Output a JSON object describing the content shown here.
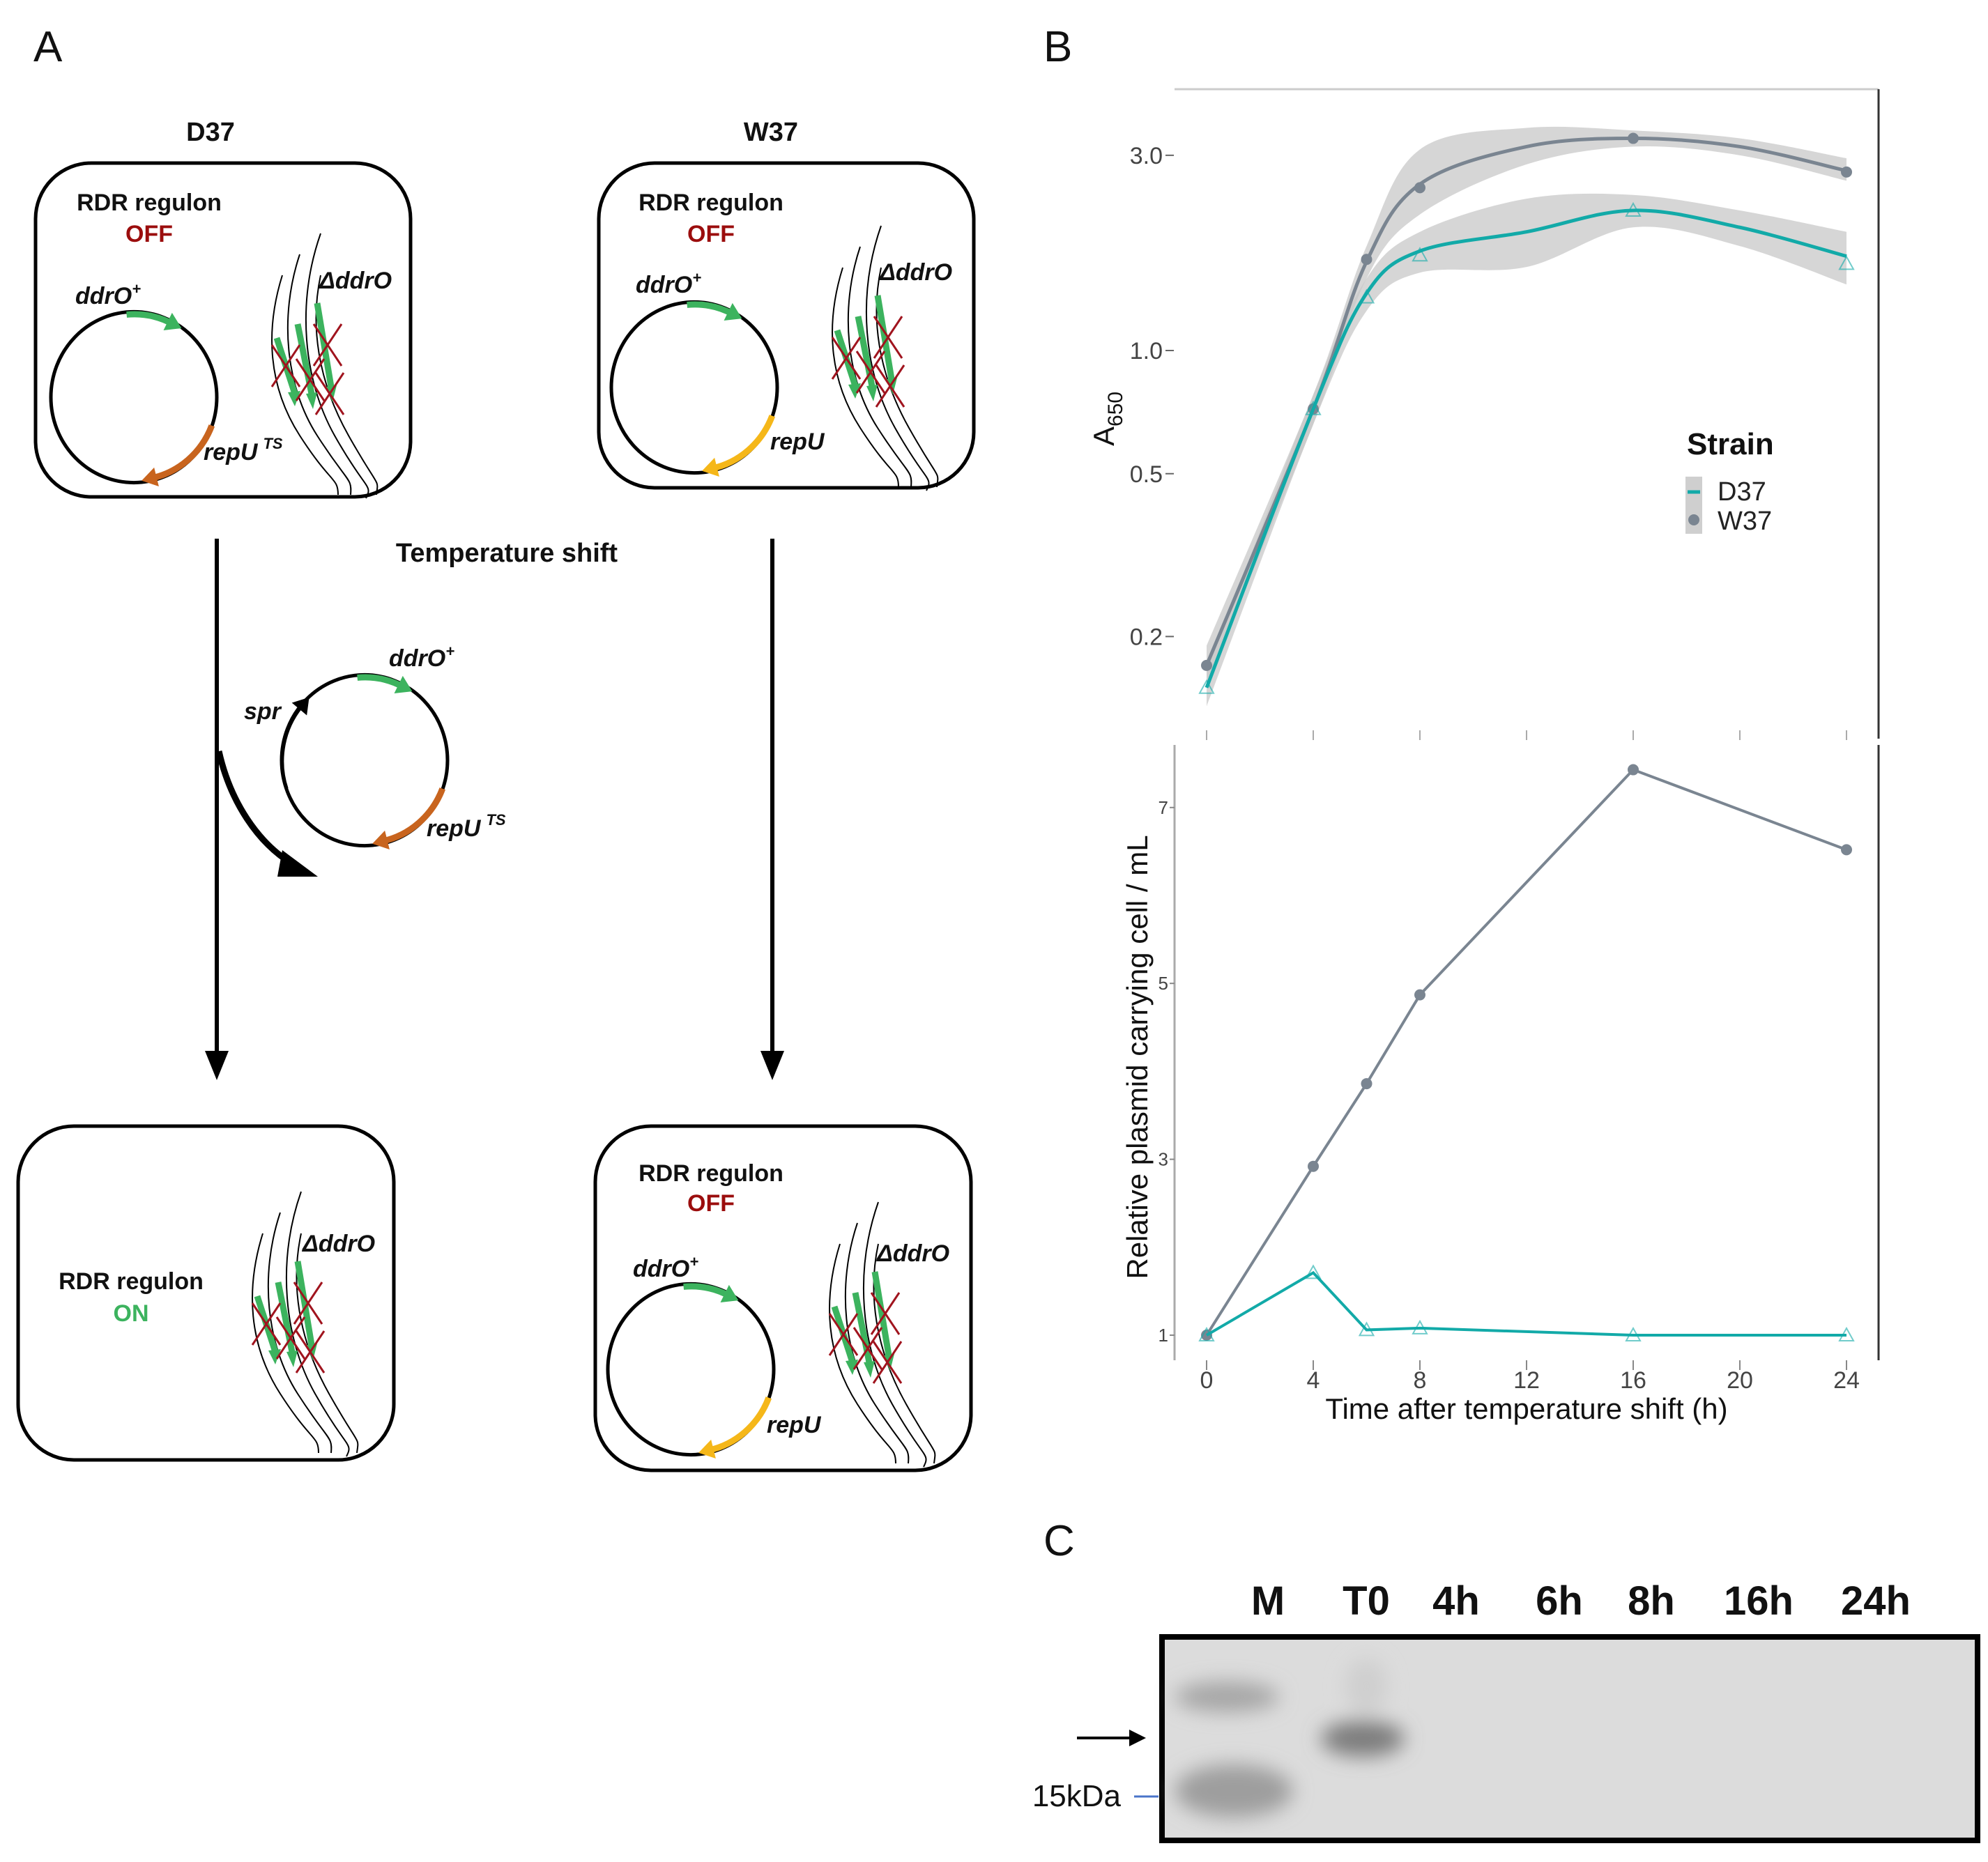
{
  "panels": {
    "a": "A",
    "b": "B",
    "c": "C"
  },
  "diagram": {
    "strain_left": "D37",
    "strain_right": "W37",
    "regulon": "RDR regulon",
    "off": "OFF",
    "on": "ON",
    "chromosome_label": "ΔddrO",
    "gene_ddro": "ddrO",
    "gene_ddro_sup": "+",
    "gene_repu": "repU",
    "gene_repu_ts_sup": "TS",
    "gene_spr": "spr",
    "shift_label": "Temperature shift",
    "colors": {
      "ddro": "#3cb35e",
      "repu_ts": "#c8641e",
      "repu": "#f5b719",
      "off": "#9b0d0d",
      "cross": "#a0141e"
    }
  },
  "chart_data": [
    {
      "type": "line",
      "title": "",
      "ylabel": "A",
      "ylabel_sub": "650",
      "xlabel": "",
      "yscale": "log",
      "ylim": [
        0.13,
        3.6
      ],
      "xlim": [
        0,
        24
      ],
      "yticks": [
        "3.0",
        "1.0",
        "0.5",
        "0.2"
      ],
      "ytick_values": [
        3.0,
        1.0,
        0.5,
        0.2
      ],
      "legend": {
        "title": "Strain",
        "position": "right",
        "entries": [
          "D37",
          "W37"
        ]
      },
      "smooth_x": [
        0,
        4,
        6,
        8,
        12,
        16,
        20,
        24
      ],
      "series": [
        {
          "name": "W37",
          "color": "#7a8591",
          "marker": "circle",
          "x": [
            0,
            4,
            6,
            8,
            16,
            24
          ],
          "values": [
            0.17,
            0.72,
            1.67,
            2.5,
            3.3,
            2.73
          ],
          "smooth": [
            0.17,
            0.72,
            1.65,
            2.55,
            3.15,
            3.3,
            3.15,
            2.75
          ],
          "ci_upper": [
            0.19,
            0.78,
            1.8,
            3.1,
            3.5,
            3.45,
            3.3,
            2.95
          ],
          "ci_lower": [
            0.155,
            0.66,
            1.5,
            2.15,
            2.85,
            3.15,
            3.0,
            2.6
          ]
        },
        {
          "name": "D37",
          "color": "#12aaa8",
          "marker": "triangle",
          "x": [
            0,
            4,
            6,
            8,
            16,
            24
          ],
          "values": [
            0.15,
            0.72,
            1.35,
            1.71,
            2.2,
            1.63
          ],
          "smooth": [
            0.15,
            0.72,
            1.38,
            1.75,
            1.95,
            2.2,
            2.0,
            1.7
          ],
          "ci_upper": [
            0.165,
            0.78,
            1.5,
            1.95,
            2.35,
            2.4,
            2.2,
            1.95
          ],
          "ci_lower": [
            0.135,
            0.66,
            1.25,
            1.55,
            1.6,
            2.0,
            1.8,
            1.45
          ]
        }
      ]
    },
    {
      "type": "line",
      "title": "",
      "ylabel": "Relative plasmid carrying cell / mL",
      "xlabel": "Time after temperature shift (h)",
      "xticks": [
        "0",
        "4",
        "8",
        "12",
        "16",
        "20",
        "24"
      ],
      "xtick_values": [
        0,
        4,
        8,
        12,
        16,
        20,
        24
      ],
      "yticks": [
        "7",
        "5",
        "3",
        "1"
      ],
      "ytick_values": [
        7,
        5,
        3,
        1
      ],
      "xlim": [
        0,
        24
      ],
      "ylim": [
        0.7,
        7.7
      ],
      "series": [
        {
          "name": "W37",
          "color": "#7a8591",
          "marker": "circle",
          "x": [
            0,
            4,
            6,
            8,
            16,
            24
          ],
          "values": [
            1.0,
            2.92,
            3.86,
            4.87,
            7.43,
            6.52
          ]
        },
        {
          "name": "D37",
          "color": "#12aaa8",
          "marker": "triangle",
          "x": [
            0,
            4,
            6,
            8,
            16,
            24
          ],
          "values": [
            1.0,
            1.71,
            1.06,
            1.08,
            1.0,
            1.0
          ]
        }
      ]
    }
  ],
  "blot": {
    "lanes": [
      "M",
      "T0",
      "4h",
      "6h",
      "8h",
      "16h",
      "24h"
    ],
    "marker_label": "15kDa"
  }
}
